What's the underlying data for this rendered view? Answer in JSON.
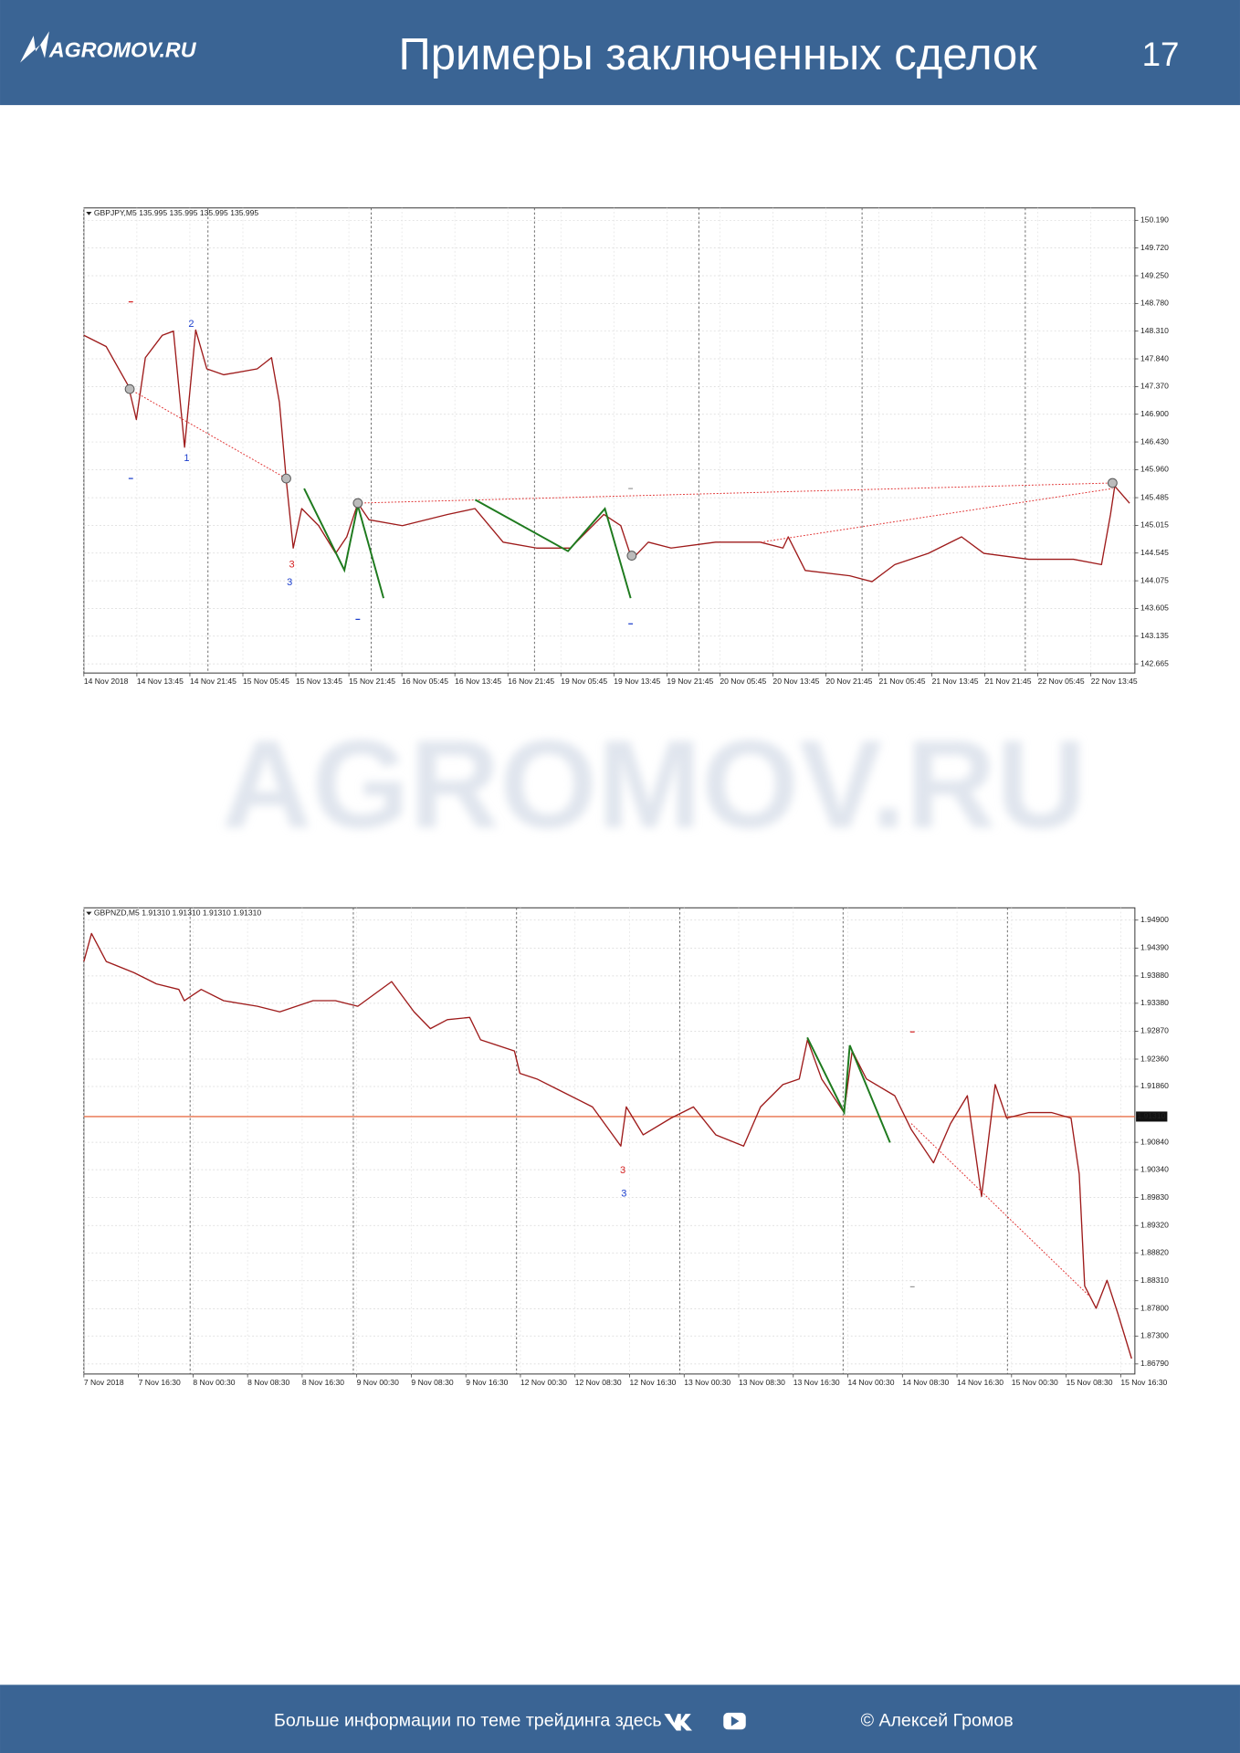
{
  "header": {
    "logo": "AGROMOV.RU",
    "title": "Примеры заключенных сделок",
    "page": "17"
  },
  "watermark": "AGROMOV.RU",
  "footer": {
    "text": "Больше информации по теме трейдинга здесь",
    "author": "© Алексей Громов"
  },
  "chart_data": [
    {
      "type": "line",
      "title": "GBPJPY,M5  135.995 135.995 135.995 135.995",
      "xticks": [
        {
          "value": 0,
          "label": "14 Nov 2018"
        },
        {
          "value": 1,
          "label": "14 Nov 13:45"
        },
        {
          "value": 2,
          "label": "14 Nov 21:45"
        },
        {
          "value": 3,
          "label": "15 Nov 05:45"
        },
        {
          "value": 4,
          "label": "15 Nov 13:45"
        },
        {
          "value": 5,
          "label": "15 Nov 21:45"
        },
        {
          "value": 6,
          "label": "16 Nov 05:45"
        },
        {
          "value": 7,
          "label": "16 Nov 13:45"
        },
        {
          "value": 8,
          "label": "16 Nov 21:45"
        },
        {
          "value": 9,
          "label": "19 Nov 05:45"
        },
        {
          "value": 10,
          "label": "19 Nov 13:45"
        },
        {
          "value": 11,
          "label": "19 Nov 21:45"
        },
        {
          "value": 12,
          "label": "20 Nov 05:45"
        },
        {
          "value": 13,
          "label": "20 Nov 13:45"
        },
        {
          "value": 14,
          "label": "20 Nov 21:45"
        },
        {
          "value": 15,
          "label": "21 Nov 05:45"
        },
        {
          "value": 16,
          "label": "21 Nov 13:45"
        },
        {
          "value": 17,
          "label": "21 Nov 21:45"
        },
        {
          "value": 18,
          "label": "22 Nov 05:45"
        },
        {
          "value": 19,
          "label": "22 Nov 13:45"
        }
      ],
      "xlim": [
        0,
        19.83
      ],
      "ylim": [
        142.51,
        150.4
      ],
      "yticks": [
        {
          "value": 150.19,
          "label": "150.190"
        },
        {
          "value": 149.72,
          "label": "149.720"
        },
        {
          "value": 149.25,
          "label": "149.250"
        },
        {
          "value": 148.78,
          "label": "148.780"
        },
        {
          "value": 148.31,
          "label": "148.310"
        },
        {
          "value": 147.84,
          "label": "147.840"
        },
        {
          "value": 147.37,
          "label": "147.370"
        },
        {
          "value": 146.9,
          "label": "146.900"
        },
        {
          "value": 146.43,
          "label": "146.430"
        },
        {
          "value": 145.96,
          "label": "145.960"
        },
        145.485,
        145.015,
        144.545,
        144.075,
        143.605,
        143.135,
        142.665
      ],
      "grid": true,
      "series": [
        {
          "color": "#9e1b1b",
          "x": [
            0,
            0.42,
            0.84,
            0.99,
            1.16,
            1.48,
            1.69,
            1.9,
            2.11,
            2.32,
            2.64,
            3.27,
            3.54,
            3.69,
            3.82,
            3.95,
            4.11,
            4.43,
            4.75,
            4.96,
            5.17,
            5.38,
            6.01,
            6.86,
            7.38,
            7.91,
            8.54,
            9.18,
            9.81,
            10.13,
            10.34,
            10.65,
            11.08,
            11.92,
            12.76,
            13.19,
            13.29,
            13.61,
            14.45,
            14.87,
            15.3,
            15.93,
            16.56,
            16.98,
            17.83,
            18.67,
            19.2,
            19.37,
            19.45,
            19.73
          ],
          "values": [
            148.24,
            148.05,
            147.38,
            146.81,
            147.86,
            148.24,
            148.31,
            146.34,
            148.33,
            147.67,
            147.57,
            147.67,
            147.86,
            147.1,
            145.77,
            144.63,
            145.3,
            145.01,
            144.54,
            144.82,
            145.39,
            145.11,
            145.01,
            145.2,
            145.3,
            144.73,
            144.63,
            144.63,
            145.2,
            145.01,
            144.44,
            144.73,
            144.63,
            144.73,
            144.73,
            144.63,
            144.82,
            144.25,
            144.16,
            144.06,
            144.35,
            144.54,
            144.82,
            144.54,
            144.44,
            144.44,
            144.35,
            145.2,
            145.68,
            145.39
          ]
        }
      ],
      "annotations": [
        "2",
        "1",
        "3",
        "3"
      ]
    },
    {
      "type": "line",
      "title": "GBPNZD,M5  1.91310 1.91310 1.91310 1.91310",
      "xticks": [
        {
          "value": 0,
          "label": "7 Nov 2018"
        },
        {
          "value": 1,
          "label": "7 Nov 16:30"
        },
        {
          "value": 2,
          "label": "8 Nov 00:30"
        },
        {
          "value": 3,
          "label": "8 Nov 08:30"
        },
        {
          "value": 4,
          "label": "8 Nov 16:30"
        },
        {
          "value": 5,
          "label": "9 Nov 00:30"
        },
        {
          "value": 6,
          "label": "9 Nov 08:30"
        },
        {
          "value": 7,
          "label": "9 Nov 16:30"
        },
        {
          "value": 8,
          "label": "12 Nov 00:30"
        },
        {
          "value": 9,
          "label": "12 Nov 08:30"
        },
        {
          "value": 10,
          "label": "12 Nov 16:30"
        },
        {
          "value": 11,
          "label": "13 Nov 00:30"
        },
        {
          "value": 12,
          "label": "13 Nov 08:30"
        },
        {
          "value": 13,
          "label": "13 Nov 16:30"
        },
        {
          "value": 14,
          "label": "14 Nov 00:30"
        },
        {
          "value": 15,
          "label": "14 Nov 08:30"
        },
        {
          "value": 16,
          "label": "14 Nov 16:30"
        },
        {
          "value": 17,
          "label": "15 Nov 00:30"
        },
        {
          "value": 18,
          "label": "15 Nov 08:30"
        },
        {
          "value": 19,
          "label": "15 Nov 16:30"
        }
      ],
      "xlim": [
        0,
        19.26
      ],
      "ylim": [
        1.86606,
        1.95125
      ],
      "yticks": [
        {
          "value": 1.949,
          "label": "1.94900"
        },
        {
          "value": 1.9439,
          "label": "1.94390"
        },
        {
          "value": 1.9388,
          "label": "1.93880"
        },
        {
          "value": 1.9338,
          "label": "1.93380"
        },
        {
          "value": 1.9287,
          "label": "1.92870"
        },
        {
          "value": 1.9236,
          "label": "1.92360"
        },
        {
          "value": 1.9186,
          "label": "1.91860"
        },
        {
          "value": 1.9084,
          "label": "1.90840"
        },
        {
          "value": 1.9034,
          "label": "1.90340"
        },
        {
          "value": 1.8983,
          "label": "1.89830"
        },
        {
          "value": 1.8932,
          "label": "1.89320"
        },
        {
          "value": 1.8882,
          "label": "1.88820"
        },
        {
          "value": 1.8831,
          "label": "1.88310"
        },
        {
          "value": 1.878,
          "label": "1.87800"
        },
        {
          "value": 1.873,
          "label": "1.87300"
        },
        {
          "value": 1.8679,
          "label": "1.86790"
        }
      ],
      "grid": true,
      "price_line": {
        "value": 1.9131,
        "label": "1.91310"
      },
      "series": [
        {
          "color": "#9e1b1b",
          "x": [
            0,
            0.14,
            0.41,
            0.92,
            1.33,
            1.74,
            1.84,
            2.15,
            2.56,
            3.18,
            3.59,
            4.2,
            4.61,
            5.02,
            5.64,
            6.05,
            6.35,
            6.66,
            7.07,
            7.27,
            7.89,
            7.99,
            8.3,
            8.71,
            9.32,
            9.84,
            9.94,
            10.25,
            10.76,
            11.17,
            11.58,
            12.09,
            12.4,
            12.81,
            13.11,
            13.26,
            13.52,
            13.93,
            14.08,
            14.34,
            14.86,
            15.16,
            15.57,
            15.88,
            16.19,
            16.45,
            16.7,
            16.91,
            17.32,
            17.73,
            18.09,
            18.24,
            18.34,
            18.55,
            18.75,
            18.95,
            19.2
          ],
          "values": [
            1.94144,
            1.94655,
            1.94144,
            1.93939,
            1.93735,
            1.93633,
            1.93428,
            1.93633,
            1.93428,
            1.93326,
            1.93224,
            1.93428,
            1.93428,
            1.93326,
            1.93776,
            1.93224,
            1.92917,
            1.93081,
            1.93122,
            1.92713,
            1.92509,
            1.921,
            1.91998,
            1.91793,
            1.91487,
            1.90771,
            1.91487,
            1.90976,
            1.91282,
            1.91487,
            1.90976,
            1.90771,
            1.91487,
            1.91895,
            1.91998,
            1.92713,
            1.91998,
            1.91384,
            1.92509,
            1.91998,
            1.91691,
            1.91078,
            1.90465,
            1.9118,
            1.91691,
            1.89851,
            1.91895,
            1.91282,
            1.91384,
            1.91384,
            1.91282,
            1.9026,
            1.88216,
            1.87807,
            1.88318,
            1.87705,
            1.86888
          ]
        }
      ],
      "annotations": [
        "3",
        "3"
      ]
    }
  ]
}
